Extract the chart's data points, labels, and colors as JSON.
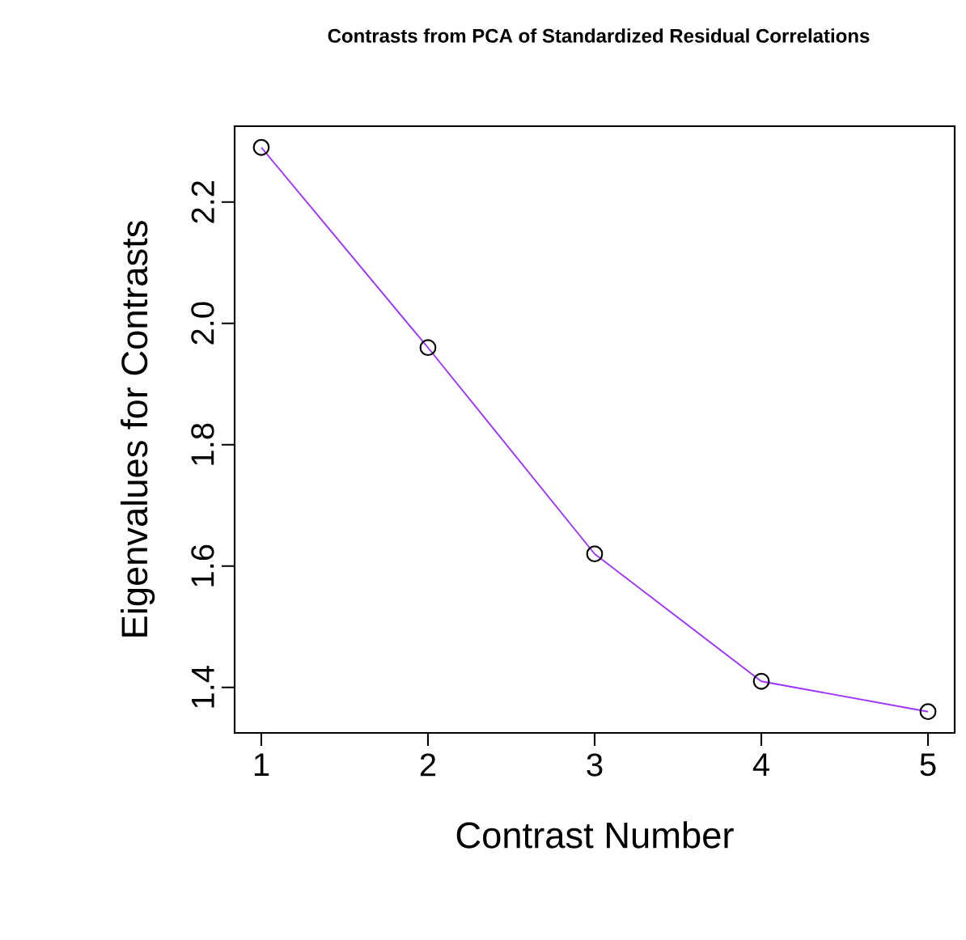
{
  "chart_data": {
    "type": "line",
    "title": "Contrasts from PCA of Standardized Residual Correlations",
    "xlabel": "Contrast Number",
    "ylabel": "Eigenvalues for Contrasts",
    "x": [
      1,
      2,
      3,
      4,
      5
    ],
    "series": [
      {
        "color": "#9b30ff",
        "values": [
          2.29,
          1.96,
          1.62,
          1.41,
          1.36
        ]
      }
    ],
    "xlim": [
      0.84,
      5.16
    ],
    "ylim": [
      1.325,
      2.325
    ],
    "xticks": [
      1,
      2,
      3,
      4,
      5
    ],
    "yticks": [
      {
        "value": 1.4,
        "label": "1.4"
      },
      {
        "value": 1.6,
        "label": "1.6"
      },
      {
        "value": 1.8,
        "label": "1.8"
      },
      {
        "value": 2.0,
        "label": "2.0"
      },
      {
        "value": 2.2,
        "label": "2.2"
      }
    ],
    "marker": "circle",
    "grid": false
  }
}
